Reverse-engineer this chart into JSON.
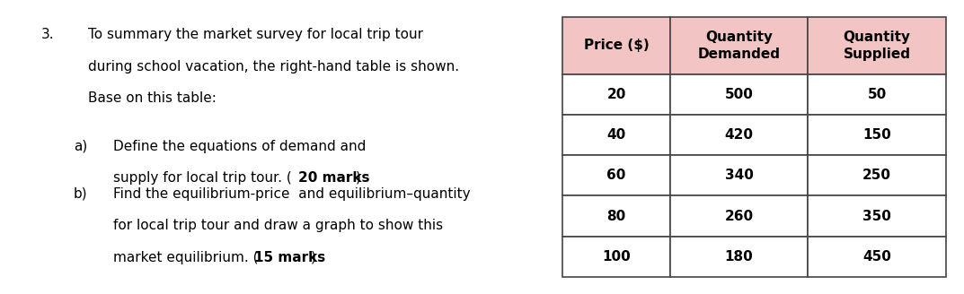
{
  "question_number": "3.",
  "q_lines": [
    "To summary the market survey for local trip tour",
    "during school vacation, the right-hand table is shown.",
    "Base on this table:"
  ],
  "sub_a_label": "a)",
  "sub_a_line1": "Define the equations of demand and",
  "sub_a_line2_normal": "supply for local trip tour. (",
  "sub_a_line2_bold": "20 marks",
  "sub_a_line2_end": ")",
  "sub_b_label": "b)",
  "sub_b_line1": "Find the equilibrium-price  and equilibrium–quantity",
  "sub_b_line2": "for local trip tour and draw a graph to show this",
  "sub_b_line3_normal": "market equilibrium. (",
  "sub_b_line3_bold": "15 marks",
  "sub_b_line3_end": ")",
  "table": {
    "col0_header": "Price ($)",
    "col1_header": "Quantity\nDemanded",
    "col2_header": "Quantity\nSupplied",
    "rows": [
      [
        20,
        500,
        50
      ],
      [
        40,
        420,
        150
      ],
      [
        60,
        340,
        250
      ],
      [
        80,
        260,
        350
      ],
      [
        100,
        180,
        450
      ]
    ],
    "header_bg": "#f2c4c4",
    "cell_bg": "#ffffff",
    "border_color": "#444444",
    "linewidth": 1.2
  },
  "background_color": "#ffffff",
  "text_color": "#000000",
  "font_family": "DejaVu Sans",
  "font_size": 11.0,
  "font_weight_normal": "normal",
  "font_weight_bold": "bold"
}
